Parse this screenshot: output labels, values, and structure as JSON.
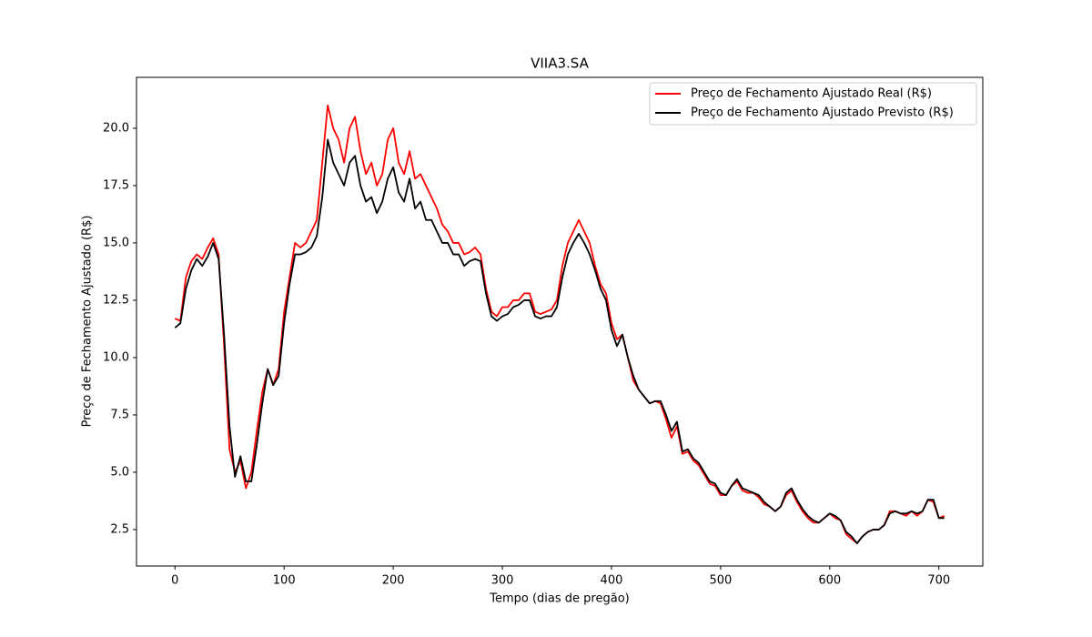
{
  "chart_data": {
    "type": "line",
    "title": "VIIA3.SA",
    "x_label": "Tempo (dias de pregão)",
    "y_label": "Preço de Fechamento Ajustado (R$)",
    "xlim": [
      -35.25,
      740.25
    ],
    "ylim": [
      0.91,
      22.22
    ],
    "xticks": [
      0,
      100,
      200,
      300,
      400,
      500,
      600,
      700
    ],
    "yticks": [
      2.5,
      {
        "value": 5,
        "label": "5.0"
      },
      7.5,
      {
        "value": 10,
        "label": "10.0"
      },
      12.5,
      {
        "value": 15,
        "label": "15.0"
      },
      17.5,
      {
        "value": 20,
        "label": "20.0"
      }
    ],
    "grid": false,
    "legend": "upper right",
    "x": [
      0,
      5,
      10,
      15,
      20,
      25,
      30,
      35,
      40,
      45,
      50,
      55,
      60,
      65,
      70,
      75,
      80,
      85,
      90,
      95,
      100,
      105,
      110,
      115,
      120,
      125,
      130,
      135,
      140,
      145,
      150,
      155,
      160,
      165,
      170,
      175,
      180,
      185,
      190,
      195,
      200,
      205,
      210,
      215,
      220,
      225,
      230,
      235,
      240,
      245,
      250,
      255,
      260,
      265,
      270,
      275,
      280,
      285,
      290,
      295,
      300,
      305,
      310,
      315,
      320,
      325,
      330,
      335,
      340,
      345,
      350,
      355,
      360,
      365,
      370,
      375,
      380,
      385,
      390,
      395,
      400,
      405,
      410,
      415,
      420,
      425,
      430,
      435,
      440,
      445,
      450,
      455,
      460,
      465,
      470,
      475,
      480,
      485,
      490,
      495,
      500,
      505,
      510,
      515,
      520,
      525,
      530,
      535,
      540,
      545,
      550,
      555,
      560,
      565,
      570,
      575,
      580,
      585,
      590,
      595,
      600,
      605,
      610,
      615,
      620,
      625,
      630,
      635,
      640,
      645,
      650,
      655,
      660,
      665,
      670,
      675,
      680,
      685,
      690,
      695,
      700,
      705
    ],
    "series": [
      {
        "name": "Preço de Fechamento Ajustado Real (R$)",
        "color": "#ff0000",
        "values": [
          11.7,
          11.6,
          13.5,
          14.2,
          14.5,
          14.3,
          14.8,
          15.2,
          14.5,
          10.5,
          6.0,
          5.0,
          5.5,
          4.3,
          5.0,
          6.8,
          8.5,
          9.5,
          8.8,
          9.5,
          12.0,
          13.5,
          15.0,
          14.8,
          15.0,
          15.5,
          16.0,
          18.5,
          21.0,
          20.0,
          19.5,
          18.5,
          20.0,
          20.5,
          19.0,
          18.0,
          18.5,
          17.5,
          18.0,
          19.5,
          20.0,
          18.5,
          18.0,
          19.0,
          17.8,
          18.0,
          17.5,
          17.0,
          16.5,
          15.8,
          15.5,
          15.0,
          15.0,
          14.5,
          14.6,
          14.8,
          14.5,
          13.0,
          12.0,
          11.8,
          12.2,
          12.2,
          12.5,
          12.5,
          12.8,
          12.8,
          12.0,
          11.9,
          12.0,
          12.1,
          12.5,
          14.0,
          15.0,
          15.5,
          16.0,
          15.5,
          15.0,
          14.0,
          13.2,
          12.8,
          11.5,
          10.8,
          11.0,
          10.0,
          9.0,
          8.6,
          8.3,
          8.0,
          8.1,
          8.0,
          7.3,
          6.5,
          7.0,
          5.8,
          5.9,
          5.5,
          5.3,
          4.9,
          4.5,
          4.4,
          4.0,
          4.0,
          4.4,
          4.6,
          4.2,
          4.1,
          4.1,
          3.9,
          3.6,
          3.5,
          3.3,
          3.5,
          4.0,
          4.2,
          3.7,
          3.3,
          3.0,
          2.8,
          2.8,
          3.0,
          3.2,
          3.0,
          2.9,
          2.3,
          2.1,
          1.9,
          2.2,
          2.4,
          2.5,
          2.5,
          2.7,
          3.3,
          3.3,
          3.2,
          3.1,
          3.3,
          3.1,
          3.3,
          3.8,
          3.7,
          3.0,
          3.1
        ]
      },
      {
        "name": "Preço de Fechamento Ajustado Previsto (R$)",
        "color": "#000000",
        "values": [
          11.3,
          11.5,
          13.0,
          13.8,
          14.3,
          14.0,
          14.4,
          15.0,
          14.3,
          11.0,
          7.0,
          4.8,
          5.7,
          4.6,
          4.6,
          6.2,
          8.0,
          9.5,
          8.8,
          9.2,
          11.5,
          13.2,
          14.5,
          14.5,
          14.6,
          14.8,
          15.3,
          17.0,
          19.5,
          18.5,
          18.0,
          17.5,
          18.5,
          18.8,
          17.5,
          16.8,
          17.0,
          16.3,
          16.8,
          17.8,
          18.3,
          17.2,
          16.8,
          17.8,
          16.5,
          16.8,
          16.0,
          16.0,
          15.5,
          15.0,
          15.0,
          14.5,
          14.5,
          14.0,
          14.2,
          14.3,
          14.2,
          12.8,
          11.8,
          11.6,
          11.8,
          11.9,
          12.2,
          12.3,
          12.5,
          12.5,
          11.8,
          11.7,
          11.8,
          11.8,
          12.2,
          13.5,
          14.5,
          15.0,
          15.4,
          15.0,
          14.5,
          13.8,
          13.0,
          12.5,
          11.2,
          10.5,
          11.0,
          10.0,
          9.2,
          8.6,
          8.3,
          8.0,
          8.1,
          8.1,
          7.5,
          6.8,
          7.2,
          5.9,
          6.0,
          5.6,
          5.4,
          5.0,
          4.6,
          4.5,
          4.1,
          4.0,
          4.4,
          4.7,
          4.3,
          4.2,
          4.1,
          4.0,
          3.7,
          3.5,
          3.3,
          3.5,
          4.1,
          4.3,
          3.8,
          3.4,
          3.1,
          2.9,
          2.8,
          3.0,
          3.2,
          3.1,
          2.9,
          2.4,
          2.2,
          1.9,
          2.2,
          2.4,
          2.5,
          2.5,
          2.7,
          3.2,
          3.3,
          3.2,
          3.2,
          3.3,
          3.2,
          3.3,
          3.8,
          3.8,
          3.0,
          3.0
        ]
      }
    ]
  }
}
